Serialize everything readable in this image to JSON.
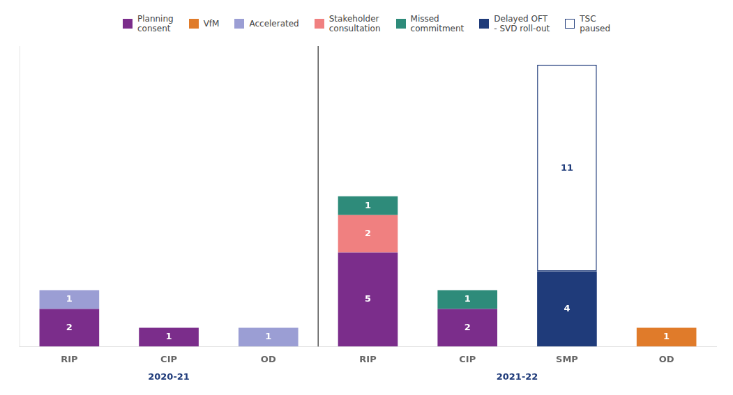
{
  "chart_data": {
    "type": "bar",
    "stacked": true,
    "categories": [
      "RIP",
      "CIP",
      "OD",
      "RIP",
      "CIP",
      "SMP",
      "OD"
    ],
    "series": [
      {
        "name": "Planning\nconsent",
        "color": "#7B2D8B",
        "values": [
          2,
          1,
          null,
          5,
          2,
          null,
          null
        ]
      },
      {
        "name": "VfM",
        "color": "#E07B2A",
        "values": [
          null,
          null,
          null,
          null,
          null,
          null,
          1
        ]
      },
      {
        "name": "Accelerated",
        "color": "#9B9ED4",
        "values": [
          1,
          null,
          1,
          null,
          null,
          null,
          null
        ]
      },
      {
        "name": "Stakeholder\nconsultation",
        "color": "#F08080",
        "values": [
          null,
          null,
          null,
          2,
          null,
          null,
          null
        ]
      },
      {
        "name": "Missed\ncommitment",
        "color": "#2E8B7A",
        "values": [
          null,
          null,
          null,
          1,
          1,
          null,
          null
        ]
      },
      {
        "name": "Delayed OFT\n- SVD roll-out",
        "color": "#1F3B7A",
        "values": [
          null,
          null,
          null,
          null,
          null,
          4,
          null
        ]
      },
      {
        "name": "TSC\npaused",
        "color": "#FFFFFF",
        "values": [
          null,
          null,
          null,
          null,
          null,
          11,
          null
        ]
      }
    ],
    "ylim": [
      0,
      16
    ],
    "tick_labels": "x",
    "grid": false,
    "legend": "top",
    "data_labels": true,
    "annotations": [
      {
        "text": "2020-21",
        "categories": [
          0,
          1,
          2
        ]
      },
      {
        "text": "2021-22",
        "categories": [
          3,
          4,
          5,
          6
        ]
      }
    ]
  }
}
